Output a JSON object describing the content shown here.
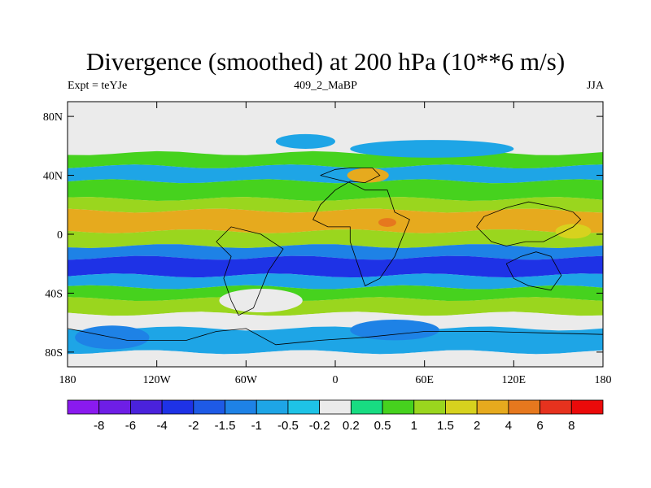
{
  "chart_data": {
    "type": "heatmap",
    "title": "Divergence (smoothed) at 200 hPa (10**6 m/s)",
    "subtitle_left": "Expt = teYJe",
    "subtitle_center": "409_2_MaBP",
    "subtitle_right": "JJA",
    "x_range": [
      -180,
      180
    ],
    "y_range": [
      -90,
      90
    ],
    "x_ticks": [
      {
        "value": -180,
        "label": "180"
      },
      {
        "value": -120,
        "label": "120W"
      },
      {
        "value": -60,
        "label": "60W"
      },
      {
        "value": 0,
        "label": "0"
      },
      {
        "value": 60,
        "label": "60E"
      },
      {
        "value": 120,
        "label": "120E"
      },
      {
        "value": 180,
        "label": "180"
      }
    ],
    "y_ticks": [
      {
        "value": 80,
        "label": "80N"
      },
      {
        "value": 40,
        "label": "40N"
      },
      {
        "value": 0,
        "label": "0"
      },
      {
        "value": -40,
        "label": "40S"
      },
      {
        "value": -80,
        "label": "80S"
      }
    ],
    "colorbar": {
      "levels": [
        "-8",
        "-6",
        "-4",
        "-2",
        "-1.5",
        "-1",
        "-0.5",
        "-0.2",
        "0.2",
        "0.5",
        "1",
        "1.5",
        "2",
        "4",
        "6",
        "8"
      ],
      "colors": [
        "#8a1aef",
        "#6e1ee6",
        "#4a22dc",
        "#1e32e6",
        "#1e5ae6",
        "#1e82e6",
        "#1ea5e6",
        "#1ec3e6",
        "#ebebeb",
        "#18dc82",
        "#46d21e",
        "#9ad61e",
        "#d7d21e",
        "#e6aa1e",
        "#e6781e",
        "#e6321e",
        "#eb0a0a"
      ]
    },
    "bands": [
      {
        "lat_top": 90,
        "lat_bottom": 55,
        "level": 8
      },
      {
        "lat_top": 55,
        "lat_bottom": 46,
        "level": 10
      },
      {
        "lat_top": 46,
        "lat_bottom": 36,
        "level": 6
      },
      {
        "lat_top": 36,
        "lat_bottom": 24,
        "level": 10
      },
      {
        "lat_top": 24,
        "lat_bottom": 16,
        "level": 11
      },
      {
        "lat_top": 16,
        "lat_bottom": 2,
        "level": 13
      },
      {
        "lat_top": 2,
        "lat_bottom": -8,
        "level": 11
      },
      {
        "lat_top": -8,
        "lat_bottom": -16,
        "level": 5
      },
      {
        "lat_top": -16,
        "lat_bottom": -28,
        "level": 3
      },
      {
        "lat_top": -28,
        "lat_bottom": -36,
        "level": 6
      },
      {
        "lat_top": -36,
        "lat_bottom": -44,
        "level": 10
      },
      {
        "lat_top": -44,
        "lat_bottom": -54,
        "level": 11
      },
      {
        "lat_top": -54,
        "lat_bottom": -64,
        "level": 8
      },
      {
        "lat_top": -64,
        "lat_bottom": -80,
        "level": 6
      },
      {
        "lat_top": -80,
        "lat_bottom": -90,
        "level": 8
      }
    ],
    "blobs": [
      {
        "lon": 35,
        "lat": 8,
        "rlon": 6,
        "rlat": 3,
        "level": 14
      },
      {
        "lon": 22,
        "lat": 40,
        "rlon": 14,
        "rlat": 5,
        "level": 13
      },
      {
        "lon": 65,
        "lat": 58,
        "rlon": 55,
        "rlat": 6,
        "level": 6
      },
      {
        "lon": -20,
        "lat": 63,
        "rlon": 20,
        "rlat": 5,
        "level": 6
      },
      {
        "lon": -150,
        "lat": -70,
        "rlon": 25,
        "rlat": 8,
        "level": 5
      },
      {
        "lon": 40,
        "lat": -65,
        "rlon": 30,
        "rlat": 7,
        "level": 5
      },
      {
        "lon": -50,
        "lat": -45,
        "rlon": 28,
        "rlat": 8,
        "level": 8
      },
      {
        "lon": 160,
        "lat": 2,
        "rlon": 12,
        "rlat": 5,
        "level": 12
      }
    ]
  }
}
